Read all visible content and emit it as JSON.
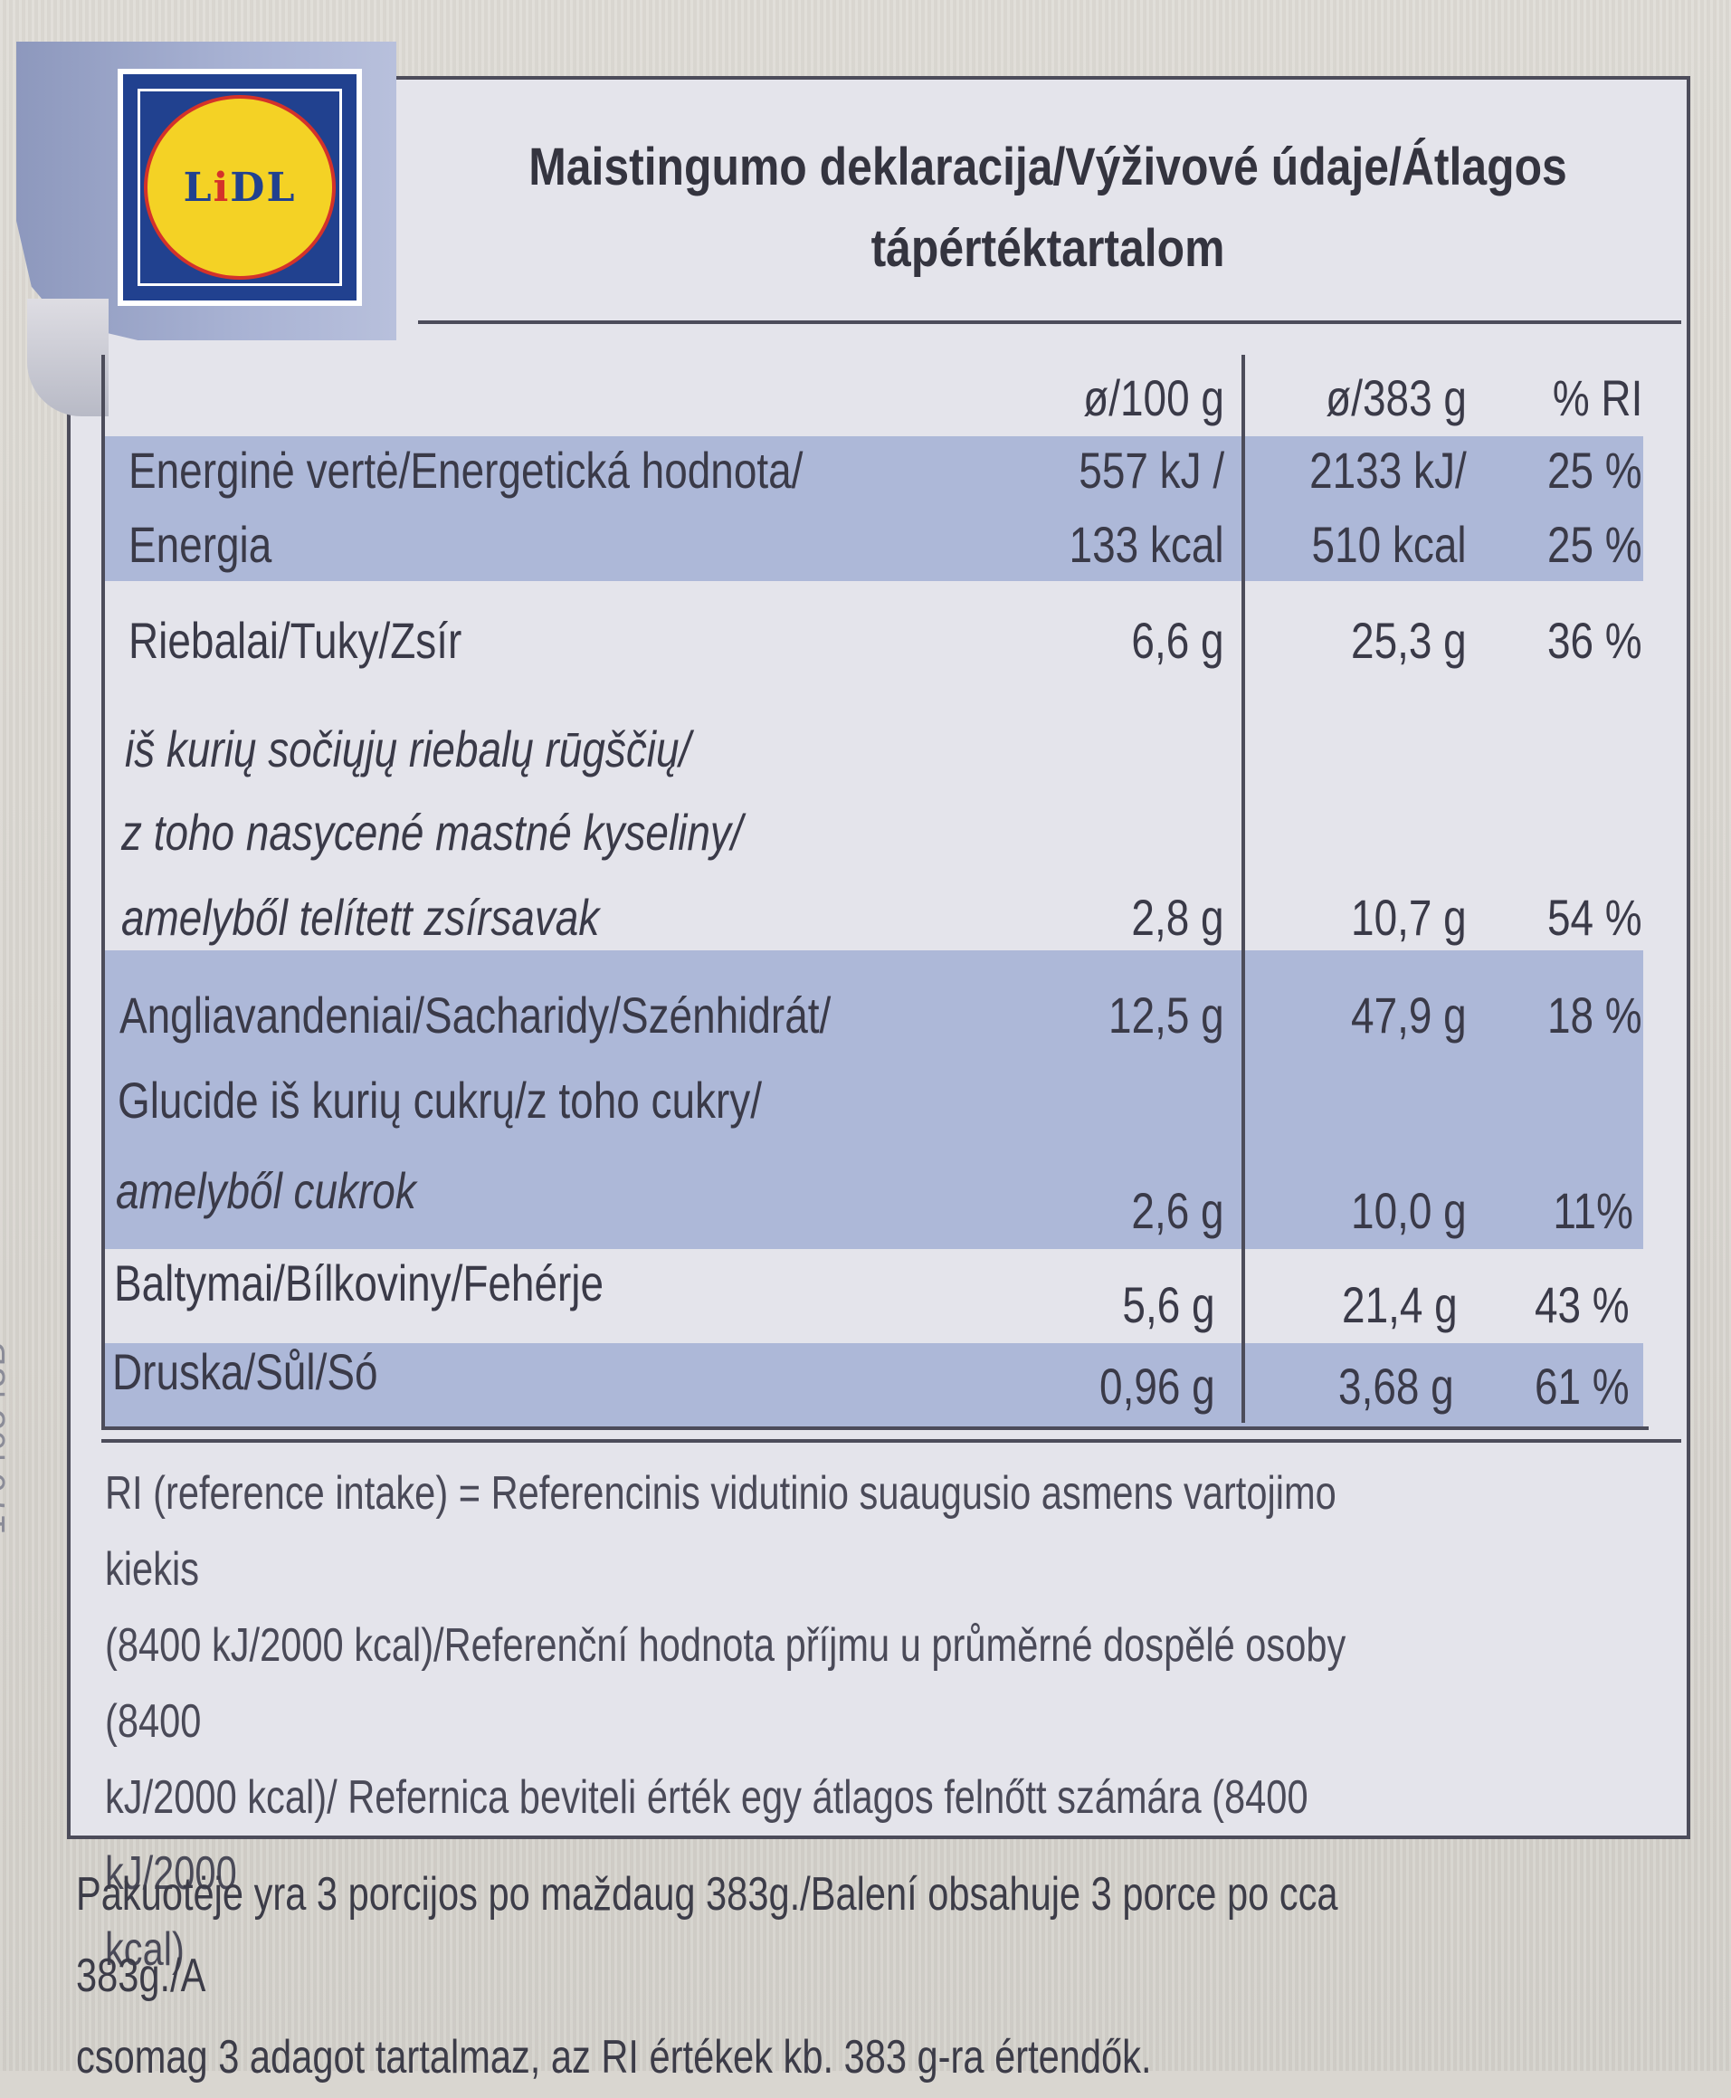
{
  "side_code": "~17040543B~",
  "logo_text": "LIDL",
  "title_line1": "Maistingumo deklaracija/Výživové údaje/Átlagos",
  "title_line2": "tápértéktartalom",
  "columns": {
    "per100": "ø/100 g",
    "perPortion": "ø/383 g",
    "ri": "% RI"
  },
  "rows": {
    "energy1": {
      "label": "Energinė vertė/Energetická hodnota/",
      "per100": "557 kJ /",
      "perPortion": "2133 kJ/",
      "ri": "25 %"
    },
    "energy2": {
      "label": "Energia",
      "per100": "133 kcal",
      "perPortion": "510 kcal",
      "ri": "25 %"
    },
    "fat": {
      "label": "Riebalai/Tuky/Zsír",
      "per100": "6,6 g",
      "perPortion": "25,3 g",
      "ri": "36 %"
    },
    "sat1": {
      "label": "iš kurių sočiųjų riebalų rūgščių/"
    },
    "sat2": {
      "label": "z toho nasycené mastné kyseliny/"
    },
    "sat3": {
      "label": "amelyből telített zsírsavak",
      "per100": "2,8 g",
      "perPortion": "10,7 g",
      "ri": "54 %"
    },
    "carb1": {
      "label": "Angliavandeniai/Sacharidy/Szénhidrát/",
      "per100": "12,5 g",
      "perPortion": "47,9 g",
      "ri": "18 %"
    },
    "carb2": {
      "label": "Glucide iš kurių cukrų/z toho cukry/"
    },
    "carb3": {
      "label": "amelyből cukrok",
      "per100": "2,6 g",
      "perPortion": "10,0 g",
      "ri": "11%"
    },
    "protein": {
      "label": "Baltymai/Bílkoviny/Fehérje",
      "per100": "5,6 g",
      "perPortion": "21,4 g",
      "ri": "43 %"
    },
    "salt": {
      "label": "Druska/Sůl/Só",
      "per100": "0,96 g",
      "perPortion": "3,68 g",
      "ri": "61 %"
    }
  },
  "ri_note": [
    "RI (reference intake) = Referencinis vidutinio suaugusio asmens vartojimo kiekis",
    "(8400 kJ/2000 kcal)/Referenční hodnota příjmu u průměrné dospělé osoby (8400",
    "kJ/2000 kcal)/ Refernica beviteli érték egy átlagos felnőtt számára (8400 kJ/2000",
    "kcal)"
  ],
  "pack_note": [
    "Pakuotėje yra 3 porcijos po maždaug 383g./Balení obsahuje 3 porce po cca 383g./A",
    "csomag 3 adagot tartalmaz, az RI értékek kb. 383 g-ra értendők."
  ],
  "colors": {
    "band": "#adb8d8",
    "frame": "#4c4c5a",
    "logo_blue": "#21418f",
    "logo_yellow": "#f4d225",
    "logo_red": "#d4322a"
  }
}
